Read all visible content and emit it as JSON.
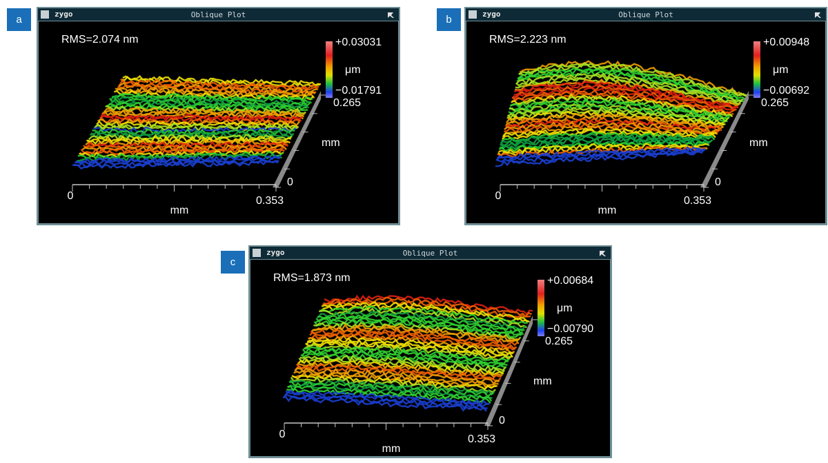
{
  "panels": [
    {
      "label": "a",
      "logo": "zygo",
      "title": "Oblique Plot",
      "rms": "RMS=2.074 nm",
      "scale_max": "+0.03031",
      "scale_unit": "μm",
      "scale_min": "−0.01791",
      "depth_max": "0.265",
      "depth_unit": "mm",
      "depth_min": "0",
      "x_min": "0",
      "x_max": "0.353",
      "x_unit": "mm"
    },
    {
      "label": "b",
      "logo": "zygo",
      "title": "Oblique Plot",
      "rms": "RMS=2.223 nm",
      "scale_max": "+0.00948",
      "scale_unit": "μm",
      "scale_min": "−0.00692",
      "depth_max": "0.265",
      "depth_unit": "mm",
      "depth_min": "0",
      "x_min": "0",
      "x_max": "0.353",
      "x_unit": "mm"
    },
    {
      "label": "c",
      "logo": "zygo",
      "title": "Oblique Plot",
      "rms": "RMS=1.873 nm",
      "scale_max": "+0.00684",
      "scale_unit": "μm",
      "scale_min": "−0.00790",
      "depth_max": "0.265",
      "depth_unit": "mm",
      "depth_min": "0",
      "x_min": "0",
      "x_max": "0.353",
      "x_unit": "mm"
    }
  ]
}
